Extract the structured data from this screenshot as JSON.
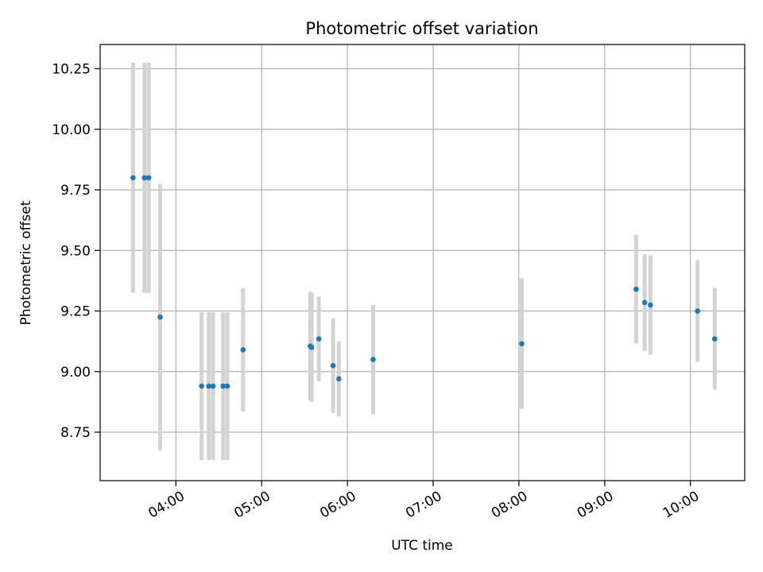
{
  "chart_data": {
    "type": "scatter",
    "title": "Photometric offset variation",
    "xlabel": "UTC time",
    "ylabel": "Photometric offset",
    "x_is_time": true,
    "xlim": [
      "03:07",
      "10:38"
    ],
    "ylim": [
      8.55,
      10.35
    ],
    "xticks": [
      "04:00",
      "05:00",
      "06:00",
      "07:00",
      "08:00",
      "09:00",
      "10:00"
    ],
    "yticks": [
      8.75,
      9.0,
      9.25,
      9.5,
      9.75,
      10.0,
      10.25
    ],
    "ytick_labels": [
      "8.75",
      "9.00",
      "9.25",
      "9.50",
      "9.75",
      "10.00",
      "10.25"
    ],
    "grid": true,
    "marker_color": "#1f77b4",
    "errorbar_color": "#d3d3d3",
    "points": [
      {
        "x": "03:30",
        "y": 9.8,
        "err": 0.475
      },
      {
        "x": "03:38",
        "y": 9.8,
        "err": 0.475
      },
      {
        "x": "03:41",
        "y": 9.8,
        "err": 0.475
      },
      {
        "x": "03:49",
        "y": 9.225,
        "err": 0.55
      },
      {
        "x": "04:18",
        "y": 8.94,
        "err": 0.305
      },
      {
        "x": "04:23",
        "y": 8.94,
        "err": 0.305
      },
      {
        "x": "04:26",
        "y": 8.94,
        "err": 0.305
      },
      {
        "x": "04:33",
        "y": 8.94,
        "err": 0.305
      },
      {
        "x": "04:36",
        "y": 8.94,
        "err": 0.305
      },
      {
        "x": "04:47",
        "y": 9.09,
        "err": 0.255
      },
      {
        "x": "05:34",
        "y": 9.105,
        "err": 0.225
      },
      {
        "x": "05:35",
        "y": 9.1,
        "err": 0.225
      },
      {
        "x": "05:40",
        "y": 9.135,
        "err": 0.175
      },
      {
        "x": "05:50",
        "y": 9.025,
        "err": 0.195
      },
      {
        "x": "05:54",
        "y": 8.97,
        "err": 0.155
      },
      {
        "x": "06:18",
        "y": 9.05,
        "err": 0.225
      },
      {
        "x": "08:02",
        "y": 9.115,
        "err": 0.27
      },
      {
        "x": "09:22",
        "y": 9.34,
        "err": 0.225
      },
      {
        "x": "09:28",
        "y": 9.285,
        "err": 0.2
      },
      {
        "x": "09:32",
        "y": 9.275,
        "err": 0.205
      },
      {
        "x": "10:05",
        "y": 9.25,
        "err": 0.21
      },
      {
        "x": "10:17",
        "y": 9.135,
        "err": 0.21
      }
    ]
  }
}
